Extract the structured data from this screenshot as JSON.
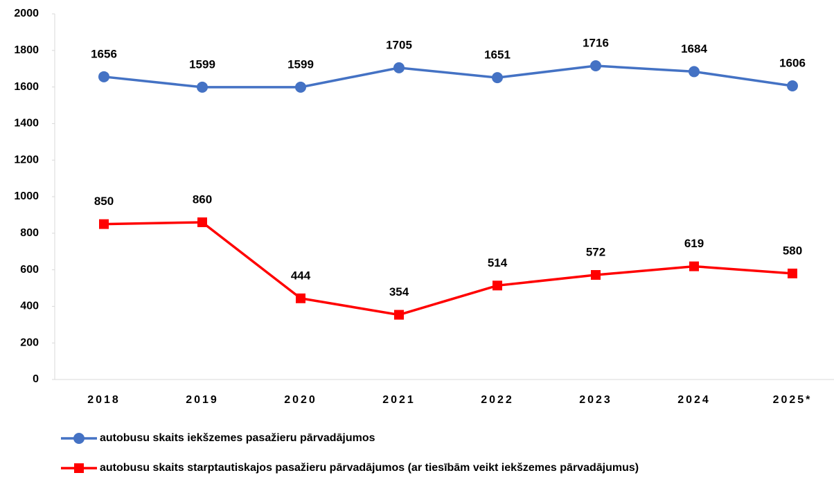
{
  "chart_data": {
    "type": "line",
    "categories": [
      "2018",
      "2019",
      "2020",
      "2021",
      "2022",
      "2023",
      "2024",
      "2025*"
    ],
    "series": [
      {
        "name": "autobusu skaits iekšzemes pasažieru pārvadājumos",
        "color": "#4472c4",
        "marker": "circle",
        "values": [
          1656,
          1599,
          1599,
          1705,
          1651,
          1716,
          1684,
          1606
        ]
      },
      {
        "name": "autobusu skaits starptautiskajos pasažieru pārvadājumos (ar tiesībām veikt iekšzemes pārvadājumus)",
        "color": "#ff0000",
        "marker": "square",
        "values": [
          850,
          860,
          444,
          354,
          514,
          572,
          619,
          580
        ]
      }
    ],
    "ylim": [
      0,
      2000
    ],
    "yticks": [
      0,
      200,
      400,
      600,
      800,
      1000,
      1200,
      1400,
      1600,
      1800,
      2000
    ],
    "grid": false,
    "legend": "bottom"
  }
}
